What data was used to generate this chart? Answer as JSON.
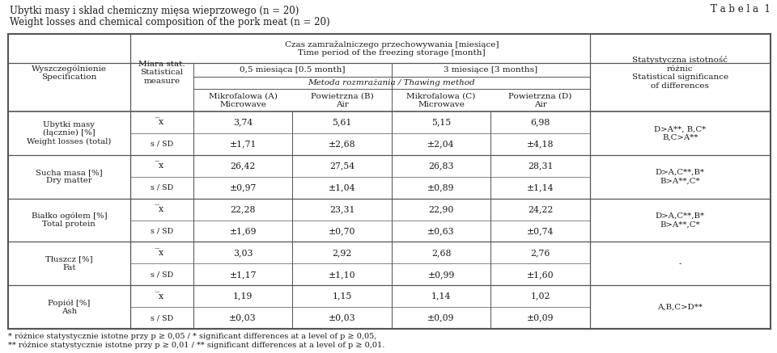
{
  "title_line1": "Ubytki masy i skład chemiczny mięsa wieprzowego (n = 20)",
  "title_line2": "Weight losses and chemical composition of the pork meat (n = 20)",
  "tabela": "T a b e l a  1",
  "rows": [
    {
      "name": "Ubytki masy\n(łącznie) [%]\nWeight losses (total)",
      "stat1": "̅x",
      "stat2": "s / SD",
      "valA1": "3,74",
      "valB1": "5,61",
      "valC1": "5,15",
      "valD1": "6,98",
      "valA2": "±1,71",
      "valB2": "±2,68",
      "valC2": "±2,04",
      "valD2": "±4,18",
      "sig": "D>A**, B,C*\nB,C>A**"
    },
    {
      "name": "Sucha masa [%]\nDry matter",
      "stat1": "̅x",
      "stat2": "s / SD",
      "valA1": "26,42",
      "valB1": "27,54",
      "valC1": "26,83",
      "valD1": "28,31",
      "valA2": "±0,97",
      "valB2": "±1,04",
      "valC2": "±0,89",
      "valD2": "±1,14",
      "sig": "D>A,C**,B*\nB>A**,C*"
    },
    {
      "name": "Białko ogółem [%]\nTotal protein",
      "stat1": "̅x",
      "stat2": "s / SD",
      "valA1": "22,28",
      "valB1": "23,31",
      "valC1": "22,90",
      "valD1": "24,22",
      "valA2": "±1,69",
      "valB2": "±0,70",
      "valC2": "±0,63",
      "valD2": "±0,74",
      "sig": "D>A,C**,B*\nB>A**,C*"
    },
    {
      "name": "Tłuszcz [%]\nFat",
      "stat1": "̅x",
      "stat2": "s / SD",
      "valA1": "3,03",
      "valB1": "2,92",
      "valC1": "2,68",
      "valD1": "2,76",
      "valA2": "±1,17",
      "valB2": "±1,10",
      "valC2": "±0,99",
      "valD2": "±1,60",
      "sig": "-"
    },
    {
      "name": "Popiół [%]\nAsh",
      "stat1": "̅x",
      "stat2": "s / SD",
      "valA1": "1,19",
      "valB1": "1,15",
      "valC1": "1,14",
      "valD1": "1,02",
      "valA2": "±0,03",
      "valB2": "±0,03",
      "valC2": "±0,09",
      "valD2": "±0,09",
      "sig": "A,B,C>D**"
    }
  ],
  "footnote1": "* różnice statystycznie istotne przy p ≥ 0,05 / * significant differences at a level of p ≥ 0,05,",
  "footnote2": "** różnice statystycznie istotne przy p ≥ 0,01 / ** significant differences at a level of p ≥ 0,01.",
  "bg_color": "#ffffff",
  "text_color": "#1a1a1a",
  "line_color": "#555555"
}
